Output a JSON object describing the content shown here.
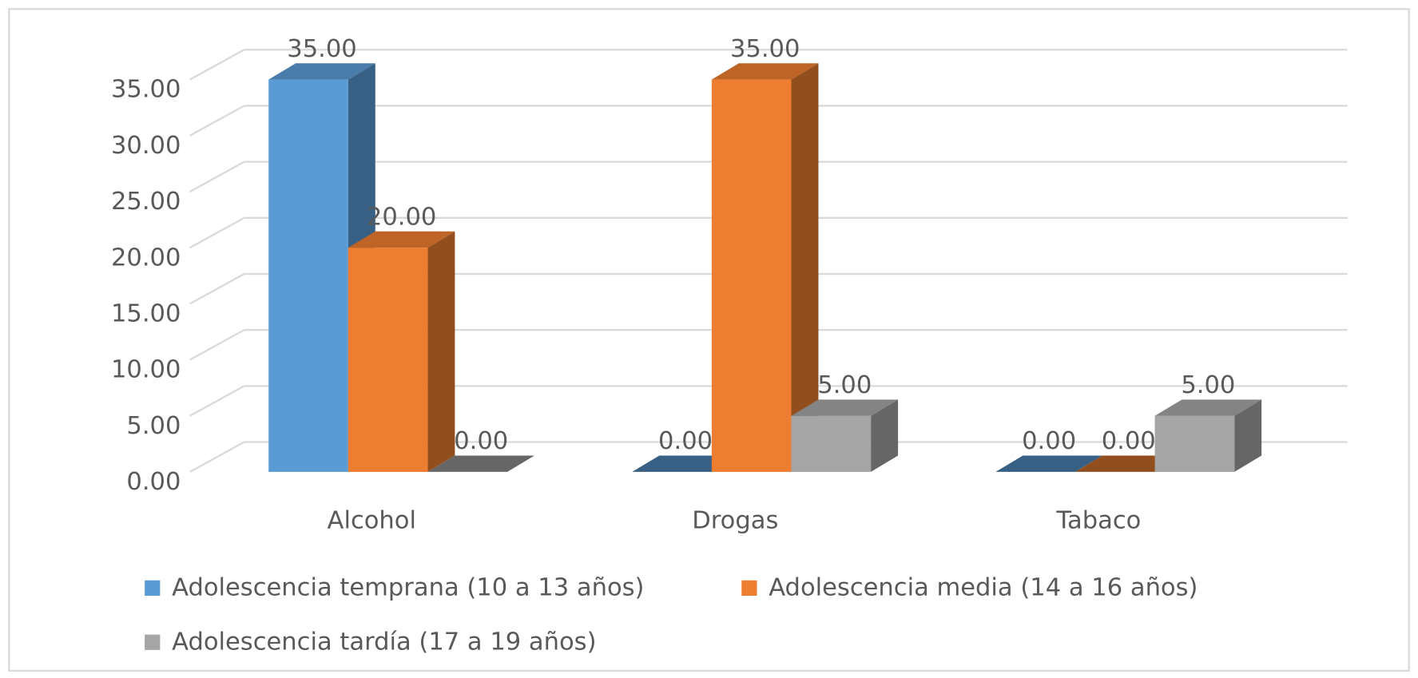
{
  "chart_data": {
    "type": "bar3d",
    "categories": [
      "Alcohol",
      "Drogas",
      "Tabaco"
    ],
    "series": [
      {
        "name": "Adolescencia temprana (10 a 13 años)",
        "color": "#5b9bd5",
        "values": [
          35,
          0,
          0
        ],
        "value_labels": [
          "35.00",
          "0.00",
          "0.00"
        ]
      },
      {
        "name": "Adolescencia media (14 a 16 años)",
        "color": "#ed7d31",
        "values": [
          20,
          35,
          0
        ],
        "value_labels": [
          "20.00",
          "35.00",
          "0.00"
        ]
      },
      {
        "name": "Adolescencia tardía (17 a 19 años)",
        "color": "#a5a5a5",
        "values": [
          0,
          5,
          5
        ],
        "value_labels": [
          "0.00",
          "5.00",
          "5.00"
        ]
      }
    ],
    "ylim": [
      0,
      35
    ],
    "yticks": [
      {
        "value": 0,
        "label": "0.00"
      },
      {
        "value": 5,
        "label": "5.00"
      },
      {
        "value": 10,
        "label": "10.00"
      },
      {
        "value": 15,
        "label": "15.00"
      },
      {
        "value": 20,
        "label": "20.00"
      },
      {
        "value": 25,
        "label": "25.00"
      },
      {
        "value": 30,
        "label": "30.00"
      },
      {
        "value": 35,
        "label": "35.00"
      }
    ],
    "grid": true,
    "legend": "bottom"
  }
}
